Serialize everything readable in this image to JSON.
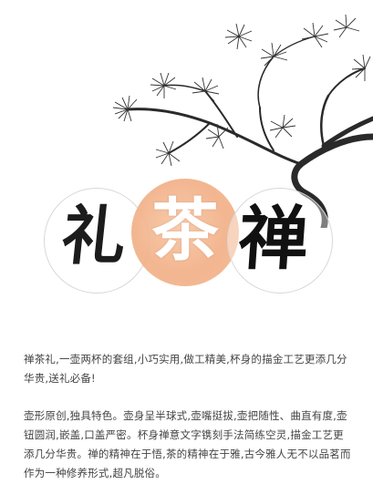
{
  "title_chars": {
    "li": "礼",
    "cha": "茶",
    "chan": "禅"
  },
  "paragraphs": {
    "p1": "禅茶礼,一壶两杯的套组,小巧实用,做工精美,杯身的描金工艺更添几分华贵,送礼必备!",
    "p2": "壶形原创,独具特色。壶身呈半球式,壶嘴挺拔,壶把随性、曲直有度,壶钮圆润,嵌盖,口盖严密。杯身禅意文字镌刻手法简练空灵,描金工艺更添几分华贵。禅的精神在于悟,茶的精神在于雅,古今雅人无不以品茗而作为一种修养形式,超凡脱俗。"
  },
  "colors": {
    "accent_circle": "#f1ae84",
    "ink": "#1c1c1c",
    "body_text": "#444444"
  }
}
